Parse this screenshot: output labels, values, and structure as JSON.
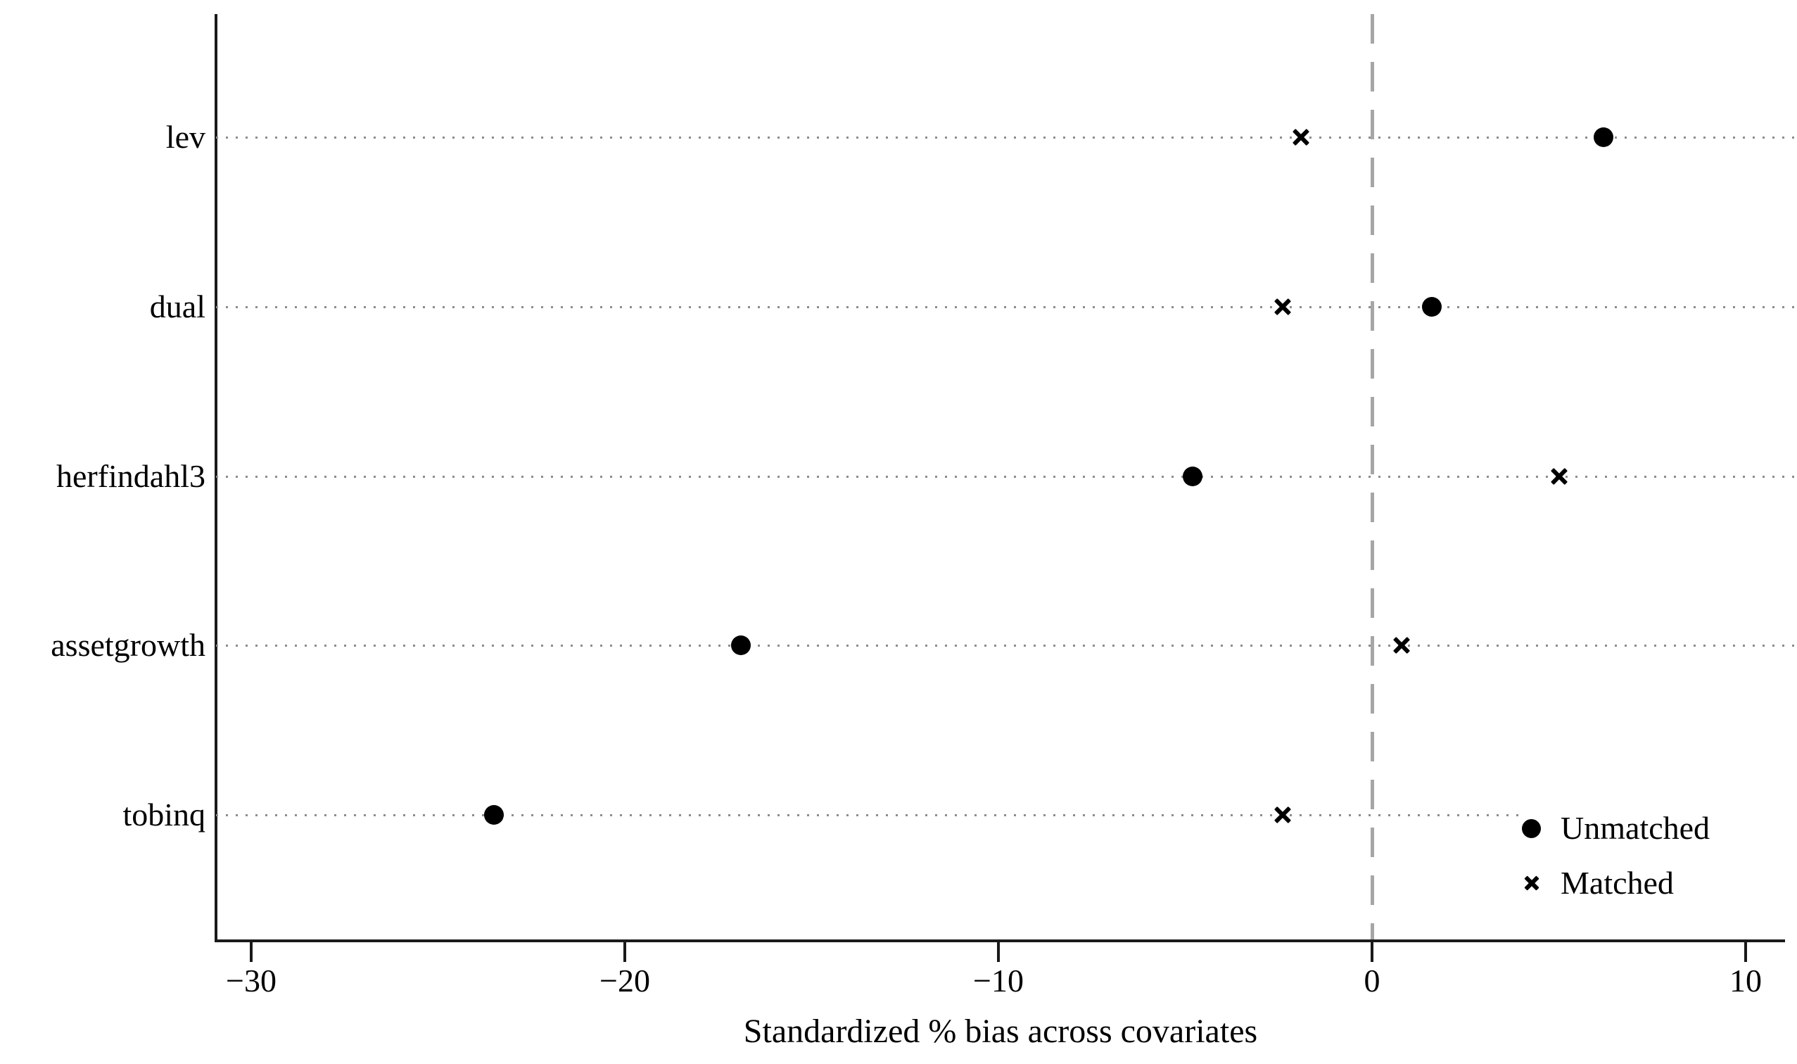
{
  "chart_data": {
    "type": "scatter",
    "title": "",
    "xlabel": "Standardized % bias across covariates",
    "ylabel": "",
    "categories": [
      "lev",
      "dual",
      "herfindahl3",
      "assetgrowth",
      "tobinq"
    ],
    "series": [
      {
        "name": "Unmatched",
        "marker": "filled-circle",
        "values": [
          6.2,
          1.6,
          -4.8,
          -16.9,
          -23.5
        ]
      },
      {
        "name": "Matched",
        "marker": "x",
        "values": [
          -1.9,
          -2.4,
          5.0,
          0.8,
          -2.4
        ]
      }
    ],
    "x_ticks": [
      -30,
      -20,
      -10,
      0,
      10
    ],
    "x_tick_labels": [
      "−30",
      "−20",
      "−10",
      "0",
      "10"
    ],
    "xlim": [
      -30.9,
      11.1
    ],
    "reference_line_x": 0,
    "grid": "horizontal-dotted",
    "legend_position": "inside-bottom-right"
  },
  "colors": {
    "marker": "#000000",
    "axis": "#1a1a1a",
    "grid_dots": "#8c8c8c",
    "reference_line": "#a6a6a6",
    "background": "#ffffff",
    "text": "#000000"
  }
}
